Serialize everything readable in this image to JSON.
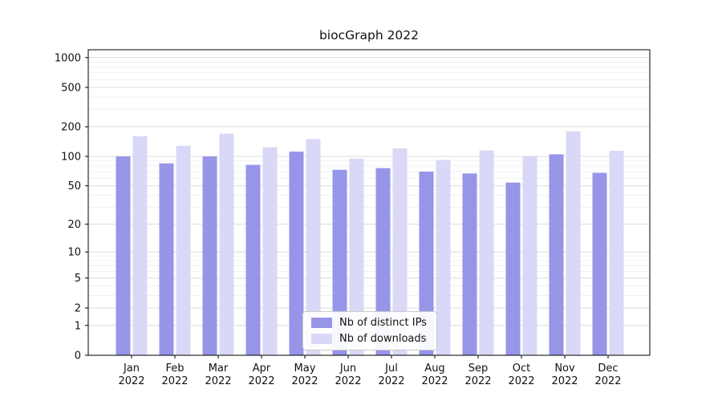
{
  "chart_data": {
    "type": "bar",
    "title": "biocGraph 2022",
    "categories": [
      "Jan 2022",
      "Feb 2022",
      "Mar 2022",
      "Apr 2022",
      "May 2022",
      "Jun 2022",
      "Jul 2022",
      "Aug 2022",
      "Sep 2022",
      "Oct 2022",
      "Nov 2022",
      "Dec 2022"
    ],
    "series": [
      {
        "name": "Nb of distinct IPs",
        "color": "#9795e8",
        "values": [
          100,
          85,
          100,
          82,
          112,
          73,
          76,
          70,
          67,
          54,
          105,
          68
        ]
      },
      {
        "name": "Nb of downloads",
        "color": "#d9d8f6",
        "values": [
          160,
          128,
          170,
          124,
          150,
          95,
          121,
          92,
          115,
          101,
          180,
          114
        ]
      }
    ],
    "yscale": "log",
    "yticks": [
      0,
      1,
      2,
      5,
      10,
      20,
      50,
      100,
      200,
      500,
      1000
    ],
    "ylim": [
      0,
      1200
    ],
    "xlabel": "",
    "ylabel": "",
    "grid": true,
    "legend_position": "lower center"
  }
}
